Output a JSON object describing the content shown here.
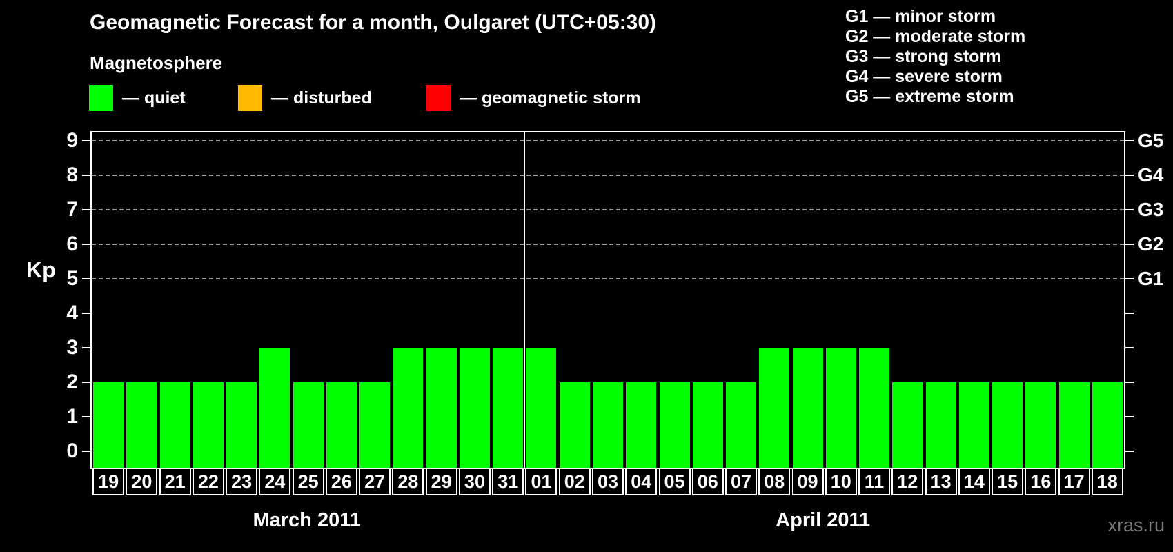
{
  "title": "Geomagnetic Forecast for a month, Oulgaret (UTC+05:30)",
  "watermark": "xras.ru",
  "legend": {
    "heading": "Magnetosphere",
    "items": [
      {
        "name": "quiet",
        "label": "— quiet",
        "color": "#00FF00"
      },
      {
        "name": "disturbed",
        "label": "— disturbed",
        "color": "#FFB900"
      },
      {
        "name": "geomagnetic-storm",
        "label": "— geomagnetic storm",
        "color": "#FF0000"
      }
    ]
  },
  "g_legend": [
    "G1 — minor storm",
    "G2 — moderate storm",
    "G3 — strong storm",
    "G4 — severe storm",
    "G5 — extreme storm"
  ],
  "chart_data": {
    "type": "bar",
    "title": "Geomagnetic Forecast for a month, Oulgaret (UTC+05:30)",
    "ylabel": "Kp",
    "ylim": [
      0,
      9
    ],
    "yticks": [
      0,
      1,
      2,
      3,
      4,
      5,
      6,
      7,
      8,
      9
    ],
    "gridlines_at_kp": [
      5,
      6,
      7,
      8,
      9
    ],
    "grid_style": "dashed",
    "bar_color": "#00FF00",
    "right_axis_labels": [
      {
        "label": "G1",
        "kp": 5
      },
      {
        "label": "G2",
        "kp": 6
      },
      {
        "label": "G3",
        "kp": 7
      },
      {
        "label": "G4",
        "kp": 8
      },
      {
        "label": "G5",
        "kp": 9
      }
    ],
    "groups": [
      {
        "month": "March 2011",
        "days": [
          "19",
          "20",
          "21",
          "22",
          "23",
          "24",
          "25",
          "26",
          "27",
          "28",
          "29",
          "30",
          "31"
        ],
        "values": [
          2,
          2,
          2,
          2,
          2,
          3,
          2,
          2,
          2,
          3,
          3,
          3,
          3
        ]
      },
      {
        "month": "April 2011",
        "days": [
          "01",
          "02",
          "03",
          "04",
          "05",
          "06",
          "07",
          "08",
          "09",
          "10",
          "11",
          "12",
          "13",
          "14",
          "15",
          "16",
          "17",
          "18"
        ],
        "values": [
          3,
          2,
          2,
          2,
          2,
          2,
          2,
          3,
          3,
          3,
          3,
          2,
          2,
          2,
          2,
          2,
          2,
          2
        ]
      }
    ]
  }
}
